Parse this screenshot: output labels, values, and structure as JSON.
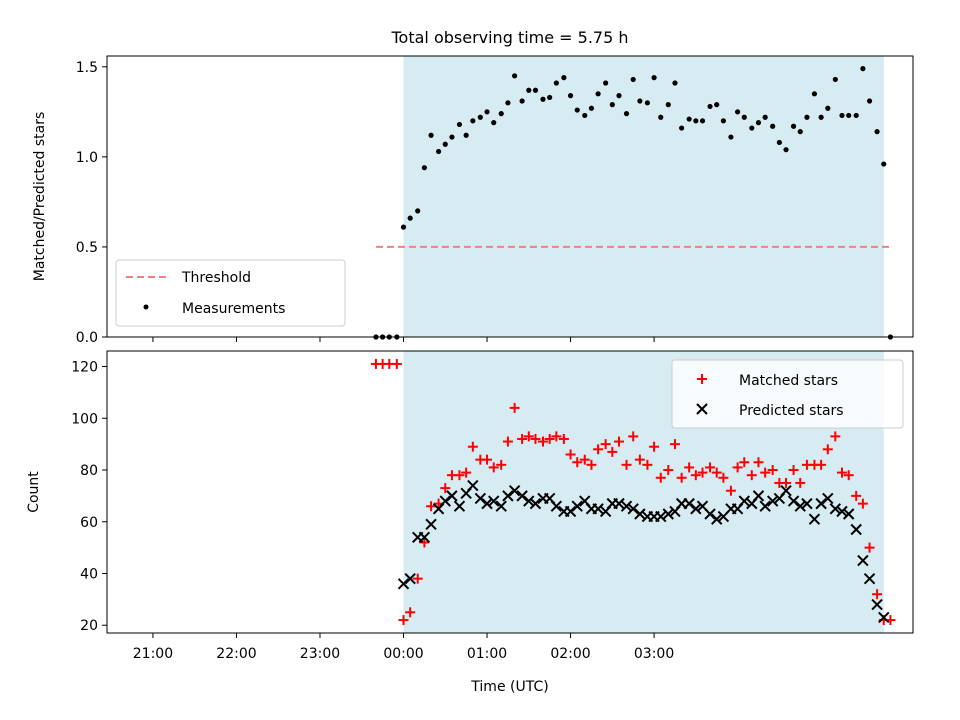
{
  "chart_data": [
    {
      "type": "scatter",
      "title": "Total observing time = 5.75 h",
      "xlabel": "",
      "ylabel": "Matched/Predicted stars",
      "xlim": [
        -3.55,
        6.1
      ],
      "ylim": [
        0,
        1.56
      ],
      "yticks": [
        0.0,
        0.5,
        1.0,
        1.5
      ],
      "ytick_labels": [
        "0.0",
        "0.5",
        "1.0",
        "1.5"
      ],
      "grid": false,
      "legend_position": "lower-left",
      "shaded_span": {
        "x0": 0.0,
        "x1": 5.75,
        "color": "#add8e6"
      },
      "threshold": {
        "name": "Threshold",
        "value": 0.5,
        "x0": -0.33,
        "x1": 5.83,
        "color": "#f08080",
        "style": "dashed"
      },
      "series": [
        {
          "name": "Measurements",
          "color": "#000000",
          "marker": "dot",
          "points": [
            [
              -0.33,
              0.0
            ],
            [
              -0.25,
              0.0
            ],
            [
              -0.17,
              0.0
            ],
            [
              -0.08,
              0.0
            ],
            [
              0.0,
              0.61
            ],
            [
              0.08,
              0.66
            ],
            [
              0.17,
              0.7
            ],
            [
              0.25,
              0.94
            ],
            [
              0.33,
              1.12
            ],
            [
              0.42,
              1.03
            ],
            [
              0.5,
              1.07
            ],
            [
              0.58,
              1.11
            ],
            [
              0.67,
              1.18
            ],
            [
              0.75,
              1.12
            ],
            [
              0.83,
              1.2
            ],
            [
              0.92,
              1.22
            ],
            [
              1.0,
              1.25
            ],
            [
              1.08,
              1.19
            ],
            [
              1.17,
              1.24
            ],
            [
              1.25,
              1.3
            ],
            [
              1.33,
              1.45
            ],
            [
              1.42,
              1.31
            ],
            [
              1.5,
              1.37
            ],
            [
              1.58,
              1.37
            ],
            [
              1.67,
              1.32
            ],
            [
              1.75,
              1.33
            ],
            [
              1.83,
              1.41
            ],
            [
              1.92,
              1.44
            ],
            [
              2.0,
              1.34
            ],
            [
              2.08,
              1.26
            ],
            [
              2.17,
              1.23
            ],
            [
              2.25,
              1.27
            ],
            [
              2.33,
              1.35
            ],
            [
              2.42,
              1.41
            ],
            [
              2.5,
              1.29
            ],
            [
              2.58,
              1.34
            ],
            [
              2.67,
              1.24
            ],
            [
              2.75,
              1.43
            ],
            [
              2.83,
              1.31
            ],
            [
              2.92,
              1.3
            ],
            [
              3.0,
              1.44
            ],
            [
              3.08,
              1.22
            ],
            [
              3.17,
              1.29
            ],
            [
              3.25,
              1.41
            ],
            [
              3.33,
              1.16
            ],
            [
              3.42,
              1.21
            ],
            [
              3.5,
              1.2
            ],
            [
              3.58,
              1.2
            ],
            [
              3.67,
              1.28
            ],
            [
              3.75,
              1.29
            ],
            [
              3.83,
              1.2
            ],
            [
              3.92,
              1.11
            ],
            [
              4.0,
              1.25
            ],
            [
              4.08,
              1.22
            ],
            [
              4.17,
              1.16
            ],
            [
              4.25,
              1.19
            ],
            [
              4.33,
              1.22
            ],
            [
              4.42,
              1.17
            ],
            [
              4.5,
              1.08
            ],
            [
              4.58,
              1.04
            ],
            [
              4.67,
              1.17
            ],
            [
              4.75,
              1.14
            ],
            [
              4.83,
              1.22
            ],
            [
              4.92,
              1.35
            ],
            [
              5.0,
              1.22
            ],
            [
              5.08,
              1.27
            ],
            [
              5.17,
              1.43
            ],
            [
              5.25,
              1.23
            ],
            [
              5.33,
              1.23
            ],
            [
              5.42,
              1.23
            ],
            [
              5.5,
              1.49
            ],
            [
              5.58,
              1.31
            ],
            [
              5.67,
              1.14
            ],
            [
              5.75,
              0.96
            ],
            [
              5.83,
              0.0
            ]
          ]
        }
      ]
    },
    {
      "type": "scatter",
      "title": "",
      "xlabel": "Time (UTC)",
      "ylabel": "Count",
      "xlim": [
        -3.55,
        6.1
      ],
      "ylim": [
        17,
        126
      ],
      "yticks": [
        20,
        40,
        60,
        80,
        100,
        120
      ],
      "ytick_labels": [
        "20",
        "40",
        "60",
        "80",
        "100",
        "120"
      ],
      "xticks": [
        -3.0,
        -2.0,
        -1.0,
        0.0,
        1.0,
        2.0,
        3.0,
        4.0,
        5.0,
        6.0
      ],
      "xtick_labels": [
        "",
        "",
        "",
        "",
        "",
        "",
        "",
        "",
        "",
        ""
      ],
      "grid": false,
      "legend_position": "top-right",
      "shaded_span": {
        "x0": 0.0,
        "x1": 5.75,
        "color": "#add8e6"
      },
      "series": [
        {
          "name": "Matched stars",
          "color": "#ff0000",
          "marker": "plus",
          "points": [
            [
              -0.33,
              121
            ],
            [
              -0.25,
              121
            ],
            [
              -0.17,
              121
            ],
            [
              -0.08,
              121
            ],
            [
              0.0,
              22
            ],
            [
              0.08,
              25
            ],
            [
              0.17,
              38
            ],
            [
              0.25,
              52
            ],
            [
              0.33,
              66
            ],
            [
              0.42,
              67
            ],
            [
              0.5,
              73
            ],
            [
              0.58,
              78
            ],
            [
              0.67,
              78
            ],
            [
              0.75,
              79
            ],
            [
              0.83,
              89
            ],
            [
              0.92,
              84
            ],
            [
              1.0,
              84
            ],
            [
              1.08,
              81
            ],
            [
              1.17,
              82
            ],
            [
              1.25,
              91
            ],
            [
              1.33,
              104
            ],
            [
              1.42,
              92
            ],
            [
              1.5,
              93
            ],
            [
              1.58,
              92
            ],
            [
              1.67,
              91
            ],
            [
              1.75,
              92
            ],
            [
              1.83,
              93
            ],
            [
              1.92,
              92
            ],
            [
              2.0,
              86
            ],
            [
              2.08,
              83
            ],
            [
              2.17,
              84
            ],
            [
              2.25,
              82
            ],
            [
              2.33,
              88
            ],
            [
              2.42,
              90
            ],
            [
              2.5,
              87
            ],
            [
              2.58,
              91
            ],
            [
              2.67,
              82
            ],
            [
              2.75,
              93
            ],
            [
              2.83,
              84
            ],
            [
              2.92,
              82
            ],
            [
              3.0,
              89
            ],
            [
              3.08,
              77
            ],
            [
              3.17,
              80
            ],
            [
              3.25,
              90
            ],
            [
              3.33,
              77
            ],
            [
              3.42,
              81
            ],
            [
              3.5,
              78
            ],
            [
              3.58,
              79
            ],
            [
              3.67,
              81
            ],
            [
              3.75,
              79
            ],
            [
              3.83,
              77
            ],
            [
              3.92,
              72
            ],
            [
              4.0,
              81
            ],
            [
              4.08,
              83
            ],
            [
              4.17,
              78
            ],
            [
              4.25,
              83
            ],
            [
              4.33,
              79
            ],
            [
              4.42,
              80
            ],
            [
              4.5,
              75
            ],
            [
              4.58,
              75
            ],
            [
              4.67,
              80
            ],
            [
              4.75,
              75
            ],
            [
              4.83,
              82
            ],
            [
              4.92,
              82
            ],
            [
              5.0,
              82
            ],
            [
              5.08,
              88
            ],
            [
              5.17,
              93
            ],
            [
              5.25,
              79
            ],
            [
              5.33,
              78
            ],
            [
              5.42,
              70
            ],
            [
              5.5,
              67
            ],
            [
              5.58,
              50
            ],
            [
              5.67,
              32
            ],
            [
              5.75,
              22
            ],
            [
              5.83,
              22
            ]
          ]
        },
        {
          "name": "Predicted stars",
          "color": "#000000",
          "marker": "x",
          "points": [
            [
              0.0,
              36
            ],
            [
              0.08,
              38
            ],
            [
              0.17,
              54
            ],
            [
              0.25,
              54
            ],
            [
              0.33,
              59
            ],
            [
              0.42,
              65
            ],
            [
              0.5,
              68
            ],
            [
              0.58,
              70
            ],
            [
              0.67,
              66
            ],
            [
              0.75,
              71
            ],
            [
              0.83,
              74
            ],
            [
              0.92,
              69
            ],
            [
              1.0,
              67
            ],
            [
              1.08,
              68
            ],
            [
              1.17,
              66
            ],
            [
              1.25,
              70
            ],
            [
              1.33,
              72
            ],
            [
              1.42,
              70
            ],
            [
              1.5,
              68
            ],
            [
              1.58,
              67
            ],
            [
              1.67,
              69
            ],
            [
              1.75,
              69
            ],
            [
              1.83,
              66
            ],
            [
              1.92,
              64
            ],
            [
              2.0,
              64
            ],
            [
              2.08,
              66
            ],
            [
              2.17,
              68
            ],
            [
              2.25,
              65
            ],
            [
              2.33,
              65
            ],
            [
              2.42,
              64
            ],
            [
              2.5,
              67
            ],
            [
              2.58,
              67
            ],
            [
              2.67,
              66
            ],
            [
              2.75,
              65
            ],
            [
              2.83,
              63
            ],
            [
              2.92,
              62
            ],
            [
              3.0,
              62
            ],
            [
              3.08,
              62
            ],
            [
              3.17,
              63
            ],
            [
              3.25,
              64
            ],
            [
              3.33,
              67
            ],
            [
              3.42,
              67
            ],
            [
              3.5,
              65
            ],
            [
              3.58,
              66
            ],
            [
              3.67,
              63
            ],
            [
              3.75,
              61
            ],
            [
              3.83,
              62
            ],
            [
              3.92,
              65
            ],
            [
              4.0,
              65
            ],
            [
              4.08,
              68
            ],
            [
              4.17,
              67
            ],
            [
              4.25,
              70
            ],
            [
              4.33,
              66
            ],
            [
              4.42,
              68
            ],
            [
              4.5,
              69
            ],
            [
              4.58,
              72
            ],
            [
              4.67,
              68
            ],
            [
              4.75,
              66
            ],
            [
              4.83,
              67
            ],
            [
              4.92,
              61
            ],
            [
              5.0,
              67
            ],
            [
              5.08,
              69
            ],
            [
              5.17,
              65
            ],
            [
              5.25,
              64
            ],
            [
              5.33,
              63
            ],
            [
              5.42,
              57
            ],
            [
              5.5,
              45
            ],
            [
              5.58,
              38
            ],
            [
              5.67,
              28
            ],
            [
              5.75,
              23
            ]
          ]
        }
      ]
    }
  ],
  "time_axis": {
    "label": "Time (UTC)",
    "ticks": [
      {
        "x": -3.0,
        "label": "21:00"
      },
      {
        "x": -2.0,
        "label": "22:00"
      },
      {
        "x": -1.0,
        "label": "23:00"
      },
      {
        "x": 0.0,
        "label": "00:00"
      },
      {
        "x": 1.0,
        "label": "01:00"
      },
      {
        "x": 2.0,
        "label": "02:00"
      },
      {
        "x": 3.0,
        "label": "03:00"
      }
    ]
  }
}
